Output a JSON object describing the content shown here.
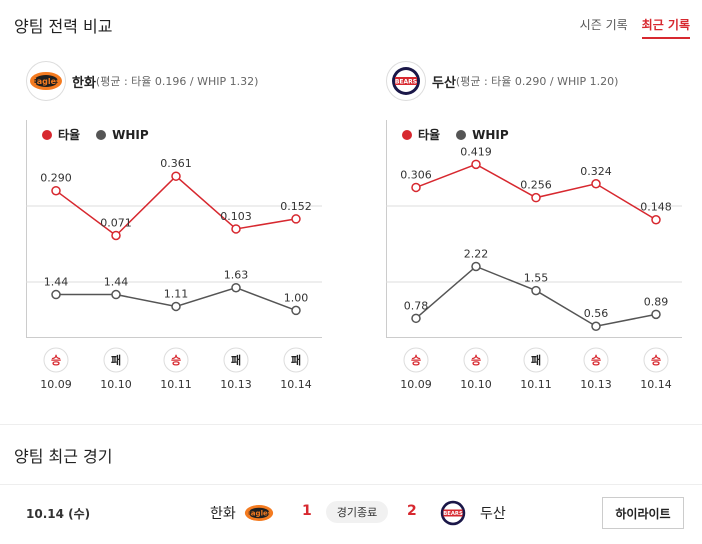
{
  "header": {
    "title": "양팀 전력 비교",
    "tabs": [
      {
        "label": "시즌 기록",
        "active": false
      },
      {
        "label": "최근 기록",
        "active": true
      }
    ]
  },
  "teams": [
    {
      "name": "한화",
      "avg_text": "(평균 : 타율 0.196 / WHIP 1.32)",
      "logo_icon": "eagles-logo",
      "logo_color": "#f47b20"
    },
    {
      "name": "두산",
      "avg_text": "(평균 : 타율 0.290 / WHIP 1.20)",
      "logo_icon": "bears-logo",
      "logo_color": "#1a1748"
    }
  ],
  "legend": {
    "avg_label": "타율",
    "whip_label": "WHIP"
  },
  "colors": {
    "avg": "#d7282f",
    "whip": "#555555",
    "win": "#d7282f",
    "loss": "#222222"
  },
  "chart_data": [
    {
      "type": "line",
      "team": "한화",
      "categories": [
        "10.09",
        "10.10",
        "10.11",
        "10.13",
        "10.14"
      ],
      "series": [
        {
          "name": "타율",
          "values": [
            0.29,
            0.071,
            0.361,
            0.103,
            0.152
          ],
          "labels": [
            "0.290",
            "0.071",
            "0.361",
            "0.103",
            "0.152"
          ]
        },
        {
          "name": "WHIP",
          "values": [
            1.44,
            1.44,
            1.11,
            1.63,
            1.0
          ],
          "labels": [
            "1.44",
            "1.44",
            "1.11",
            "1.63",
            "1.00"
          ]
        }
      ],
      "results": [
        "승",
        "패",
        "승",
        "패",
        "패"
      ]
    },
    {
      "type": "line",
      "team": "두산",
      "categories": [
        "10.09",
        "10.10",
        "10.11",
        "10.13",
        "10.14"
      ],
      "series": [
        {
          "name": "타율",
          "values": [
            0.306,
            0.419,
            0.256,
            0.324,
            0.148
          ],
          "labels": [
            "0.306",
            "0.419",
            "0.256",
            "0.324",
            "0.148"
          ]
        },
        {
          "name": "WHIP",
          "values": [
            0.78,
            2.22,
            1.55,
            0.56,
            0.89
          ],
          "labels": [
            "0.78",
            "2.22",
            "1.55",
            "0.56",
            "0.89"
          ]
        }
      ],
      "results": [
        "승",
        "승",
        "패",
        "승",
        "승"
      ]
    }
  ],
  "recent": {
    "title": "양팀 최근 경기",
    "date": "10.14 (수)",
    "home": "한화",
    "away": "두산",
    "home_score": "1",
    "away_score": "2",
    "status": "경기종료",
    "highlight_label": "하이라이트"
  }
}
